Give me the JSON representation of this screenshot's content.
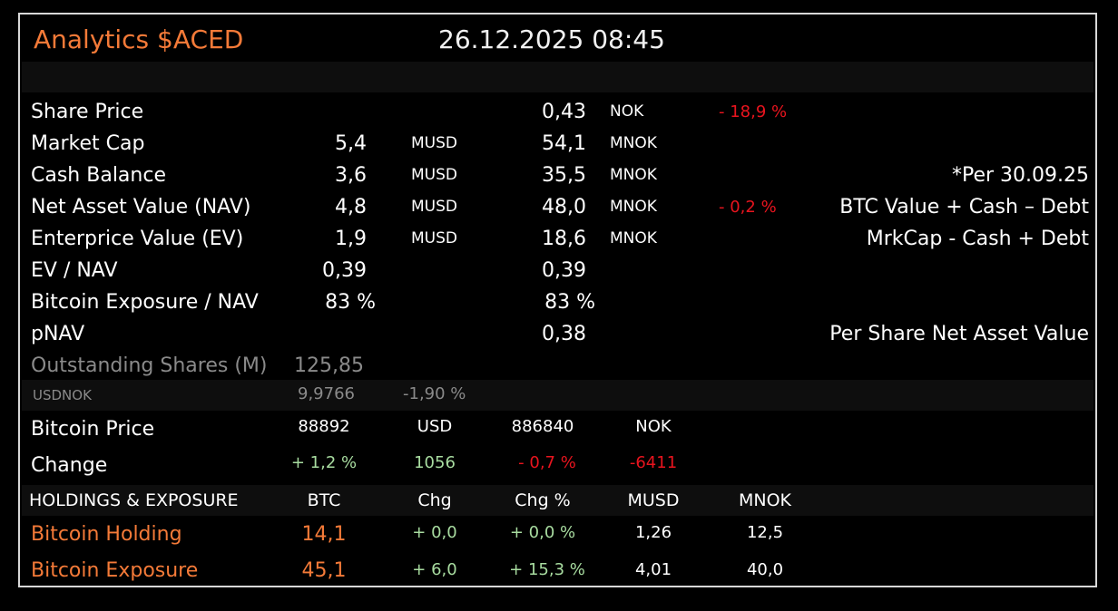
{
  "header": {
    "title": "Analytics $ACED",
    "datetime": "26.12.2025 08:45"
  },
  "rows": {
    "share_price": {
      "label": "Share Price",
      "nok": "0,43",
      "nok_unit": "NOK",
      "change": "- 18,9 %"
    },
    "market_cap": {
      "label": "Market Cap",
      "usd": "5,4",
      "usd_unit": "MUSD",
      "nok": "54,1",
      "nok_unit": "MNOK"
    },
    "cash_balance": {
      "label": "Cash Balance",
      "usd": "3,6",
      "usd_unit": "MUSD",
      "nok": "35,5",
      "nok_unit": "MNOK",
      "note": "*Per 30.09.25"
    },
    "nav": {
      "label": "Net Asset Value (NAV)",
      "usd": "4,8",
      "usd_unit": "MUSD",
      "nok": "48,0",
      "nok_unit": "MNOK",
      "change": "- 0,2 %",
      "note": "BTC Value + Cash – Debt"
    },
    "ev": {
      "label": "Enterprice Value (EV)",
      "usd": "1,9",
      "usd_unit": "MUSD",
      "nok": "18,6",
      "nok_unit": "MNOK",
      "note": "MrkCap - Cash + Debt"
    },
    "ev_nav": {
      "label": "EV / NAV",
      "usd": "0,39",
      "nok": "0,39"
    },
    "btc_exposure_nav": {
      "label": "Bitcoin Exposure / NAV",
      "usd": "83 %",
      "nok": "83 %"
    },
    "pnav": {
      "label": "pNAV",
      "nok": "0,38",
      "note": "Per Share Net Asset Value"
    },
    "outstanding": {
      "label": "Outstanding Shares (M)",
      "value": "125,85"
    }
  },
  "fx": {
    "label": "USDNOK",
    "value": "9,9766",
    "change": "-1,90 %"
  },
  "bitcoin": {
    "price_label": "Bitcoin Price",
    "price_usd": "88892",
    "usd_unit": "USD",
    "price_nok": "886840",
    "nok_unit": "NOK",
    "change_label": "Change",
    "change_usd_pct": "+ 1,2 %",
    "change_usd_abs": "1056",
    "change_nok_pct": "- 0,7 %",
    "change_nok_abs": "-6411"
  },
  "holdings": {
    "header": {
      "title": "HOLDINGS  &  EXPOSURE",
      "btc": "BTC",
      "chg": "Chg",
      "chg_pct": "Chg %",
      "musd": "MUSD",
      "mnok": "MNOK"
    },
    "items": [
      {
        "label": "Bitcoin Holding",
        "btc": "14,1",
        "chg": "+ 0,0",
        "chg_pct": "+ 0,0 %",
        "musd": "1,26",
        "mnok": "12,5"
      },
      {
        "label": "Bitcoin Exposure",
        "btc": "45,1",
        "chg": "+ 6,0",
        "chg_pct": "+ 15,3 %",
        "musd": "4,01",
        "mnok": "40,0"
      }
    ]
  },
  "colors": {
    "accent": "#f47a38",
    "negative": "#e8141e",
    "positive": "#a8dca0",
    "muted": "#8a8a8a"
  }
}
